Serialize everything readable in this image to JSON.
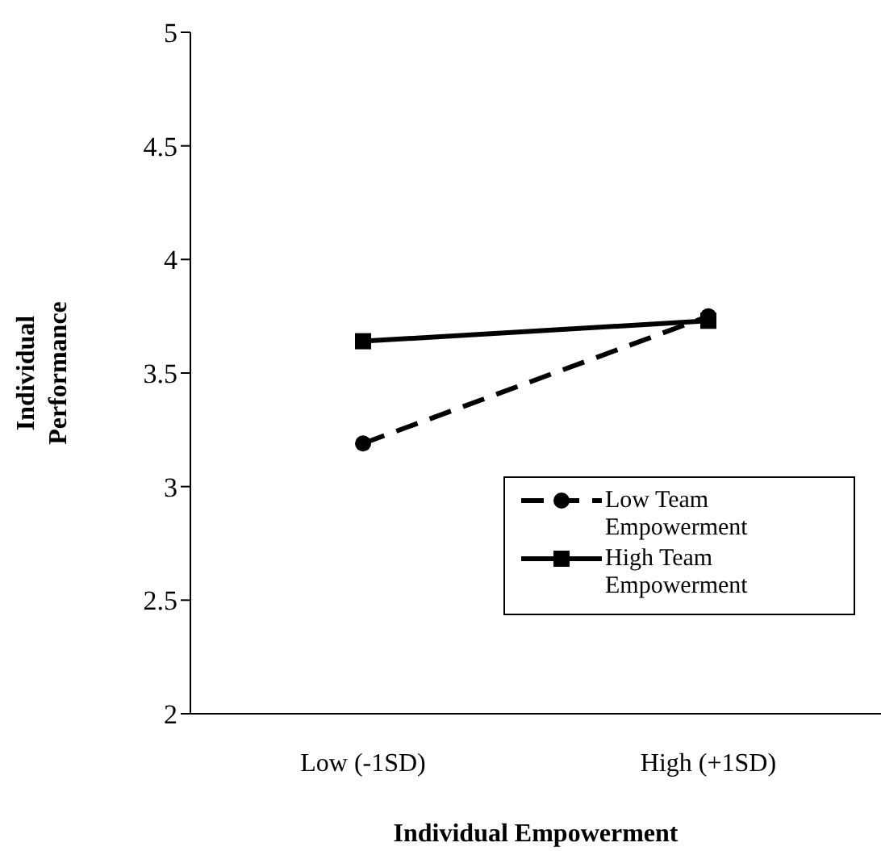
{
  "chart_data": {
    "type": "line",
    "xlabel": "Individual Empowerment",
    "ylabel": "Individual Performance",
    "categories": [
      "Low (-1SD)",
      "High (+1SD)"
    ],
    "series": [
      {
        "name": "Low Team Empowerment",
        "color": "#000000",
        "values": [
          3.19,
          3.75
        ],
        "marker": "circle",
        "line_style": "dashed"
      },
      {
        "name": "High Team Empowerment",
        "color": "#000000",
        "values": [
          3.64,
          3.73
        ],
        "marker": "square",
        "line_style": "solid"
      }
    ],
    "ylim": [
      2,
      5
    ],
    "yticks": [
      2,
      2.5,
      3,
      3.5,
      4,
      4.5,
      5
    ],
    "grid": false,
    "legend": "bottom right"
  }
}
